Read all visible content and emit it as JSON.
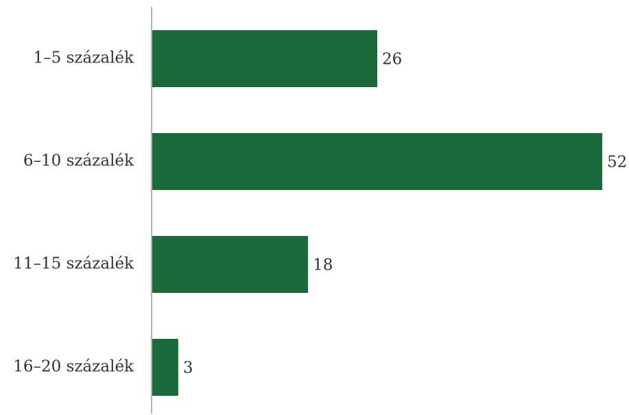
{
  "chart_data": {
    "type": "bar",
    "orientation": "horizontal",
    "categories": [
      "1–5 százalék",
      "6–10 százalék",
      "11–15 százalék",
      "16–20 százalék"
    ],
    "values": [
      26,
      52,
      18,
      3
    ],
    "value_labels": [
      "26",
      "52",
      "18",
      "3"
    ],
    "xlim": [
      0,
      52
    ],
    "grid": false,
    "legend": "none",
    "bar_color": "#1b6b3a",
    "axis_color": "#999999"
  }
}
